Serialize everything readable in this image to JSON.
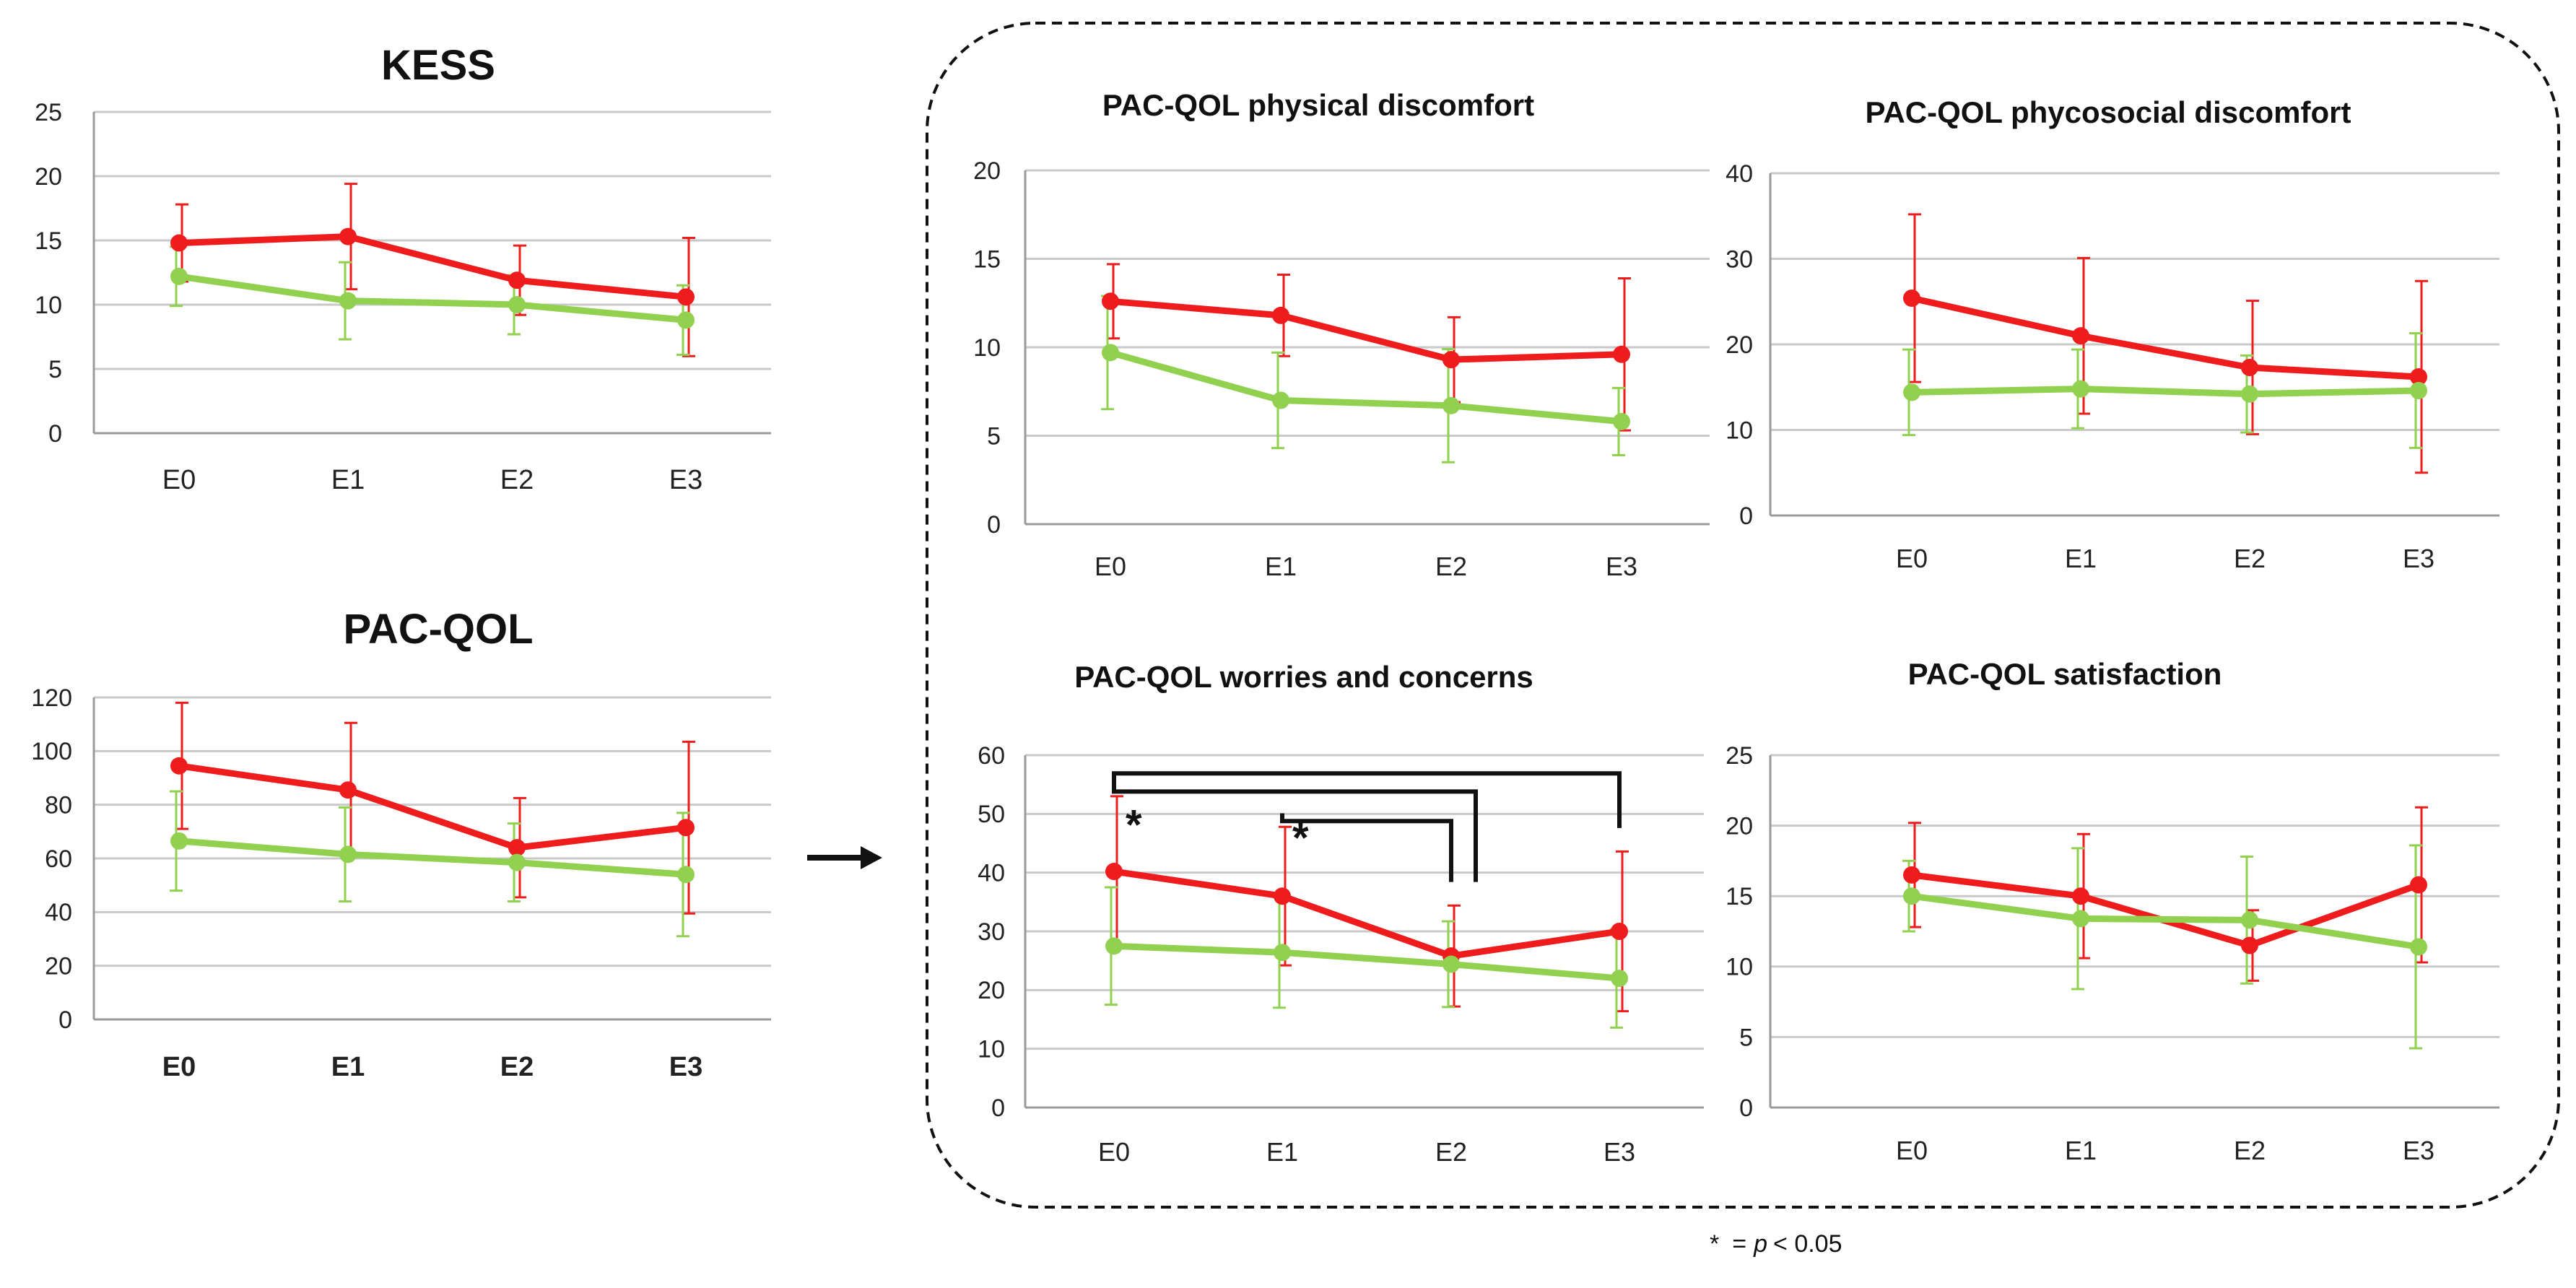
{
  "colors": {
    "series_red": "#ee1c1c",
    "series_green": "#92d050"
  },
  "chart_data": [
    {
      "id": "kess",
      "type": "line",
      "title": "KESS",
      "categories": [
        "E0",
        "E1",
        "E2",
        "E3"
      ],
      "ylim": [
        0,
        25
      ],
      "yticks": [
        "0",
        "5",
        "10",
        "15",
        "20",
        "25"
      ],
      "bold_ticks": false,
      "series": [
        {
          "name": "red",
          "values": [
            14.8,
            15.3,
            11.9,
            10.6
          ],
          "err": [
            3.0,
            4.1,
            2.7,
            4.6
          ]
        },
        {
          "name": "green",
          "values": [
            12.2,
            10.3,
            10.0,
            8.8
          ],
          "err": [
            2.3,
            3.0,
            2.3,
            2.7
          ]
        }
      ]
    },
    {
      "id": "pacqol",
      "type": "line",
      "title": "PAC-QOL",
      "categories": [
        "E0",
        "E1",
        "E2",
        "E3"
      ],
      "ylim": [
        0,
        120
      ],
      "yticks": [
        "0",
        "20",
        "40",
        "60",
        "80",
        "100",
        "120"
      ],
      "bold_ticks": true,
      "series": [
        {
          "name": "red",
          "values": [
            94.5,
            85.5,
            64.0,
            71.5
          ],
          "err": [
            23.5,
            25.0,
            18.5,
            32.0
          ]
        },
        {
          "name": "green",
          "values": [
            66.5,
            61.5,
            58.5,
            54.0
          ],
          "err": [
            18.5,
            17.5,
            14.5,
            23.0
          ]
        }
      ]
    },
    {
      "id": "physical",
      "type": "line",
      "title": "PAC-QOL physical discomfort",
      "categories": [
        "E0",
        "E1",
        "E2",
        "E3"
      ],
      "ylim": [
        0,
        20
      ],
      "yticks": [
        "0",
        "5",
        "10",
        "15",
        "20"
      ],
      "bold_ticks": false,
      "series": [
        {
          "name": "red",
          "values": [
            12.6,
            11.8,
            9.3,
            9.6
          ],
          "err": [
            2.1,
            2.3,
            2.4,
            4.3
          ]
        },
        {
          "name": "green",
          "values": [
            9.7,
            7.0,
            6.7,
            5.8
          ],
          "err": [
            3.2,
            2.7,
            3.2,
            1.9
          ]
        }
      ]
    },
    {
      "id": "psychosocial",
      "type": "line",
      "title": "PAC-QOL phycosocial discomfort",
      "categories": [
        "E0",
        "E1",
        "E2",
        "E3"
      ],
      "ylim": [
        0,
        40
      ],
      "yticks": [
        "0",
        "10",
        "20",
        "30",
        "40"
      ],
      "bold_ticks": false,
      "series": [
        {
          "name": "red",
          "values": [
            25.4,
            21.0,
            17.3,
            16.2
          ],
          "err": [
            9.8,
            9.1,
            7.8,
            11.2
          ]
        },
        {
          "name": "green",
          "values": [
            14.4,
            14.8,
            14.2,
            14.6
          ],
          "err": [
            5.0,
            4.6,
            4.5,
            6.7
          ]
        }
      ]
    },
    {
      "id": "worries",
      "type": "line",
      "title": "PAC-QOL worries and concerns",
      "categories": [
        "E0",
        "E1",
        "E2",
        "E3"
      ],
      "ylim": [
        0,
        60
      ],
      "yticks": [
        "0",
        "10",
        "20",
        "30",
        "40",
        "50",
        "60"
      ],
      "bold_ticks": false,
      "series": [
        {
          "name": "red",
          "values": [
            40.2,
            36.0,
            25.8,
            30.0
          ],
          "err": [
            12.8,
            11.8,
            8.6,
            13.6
          ]
        },
        {
          "name": "green",
          "values": [
            27.5,
            26.4,
            24.4,
            22.0
          ],
          "err": [
            10.0,
            9.4,
            7.3,
            8.4
          ]
        }
      ],
      "significance": [
        {
          "from": "E0",
          "to": [
            "E2",
            "E3"
          ],
          "label": "*"
        },
        {
          "from": "E1",
          "to": [
            "E2"
          ],
          "label": "*"
        }
      ]
    },
    {
      "id": "satisfaction",
      "type": "line",
      "title": "PAC-QOL satisfaction",
      "categories": [
        "E0",
        "E1",
        "E2",
        "E3"
      ],
      "ylim": [
        0,
        25
      ],
      "yticks": [
        "0",
        "5",
        "10",
        "15",
        "20",
        "25"
      ],
      "bold_ticks": false,
      "series": [
        {
          "name": "red",
          "values": [
            16.5,
            15.0,
            11.5,
            15.8
          ],
          "err": [
            3.7,
            4.4,
            2.5,
            5.5
          ]
        },
        {
          "name": "green",
          "values": [
            15.0,
            13.4,
            13.3,
            11.4
          ],
          "err": [
            2.5,
            5.0,
            4.5,
            7.2
          ]
        }
      ]
    }
  ],
  "footnote": {
    "star": "*",
    "equals": "=",
    "p": "p",
    "rest": "< 0.05"
  }
}
